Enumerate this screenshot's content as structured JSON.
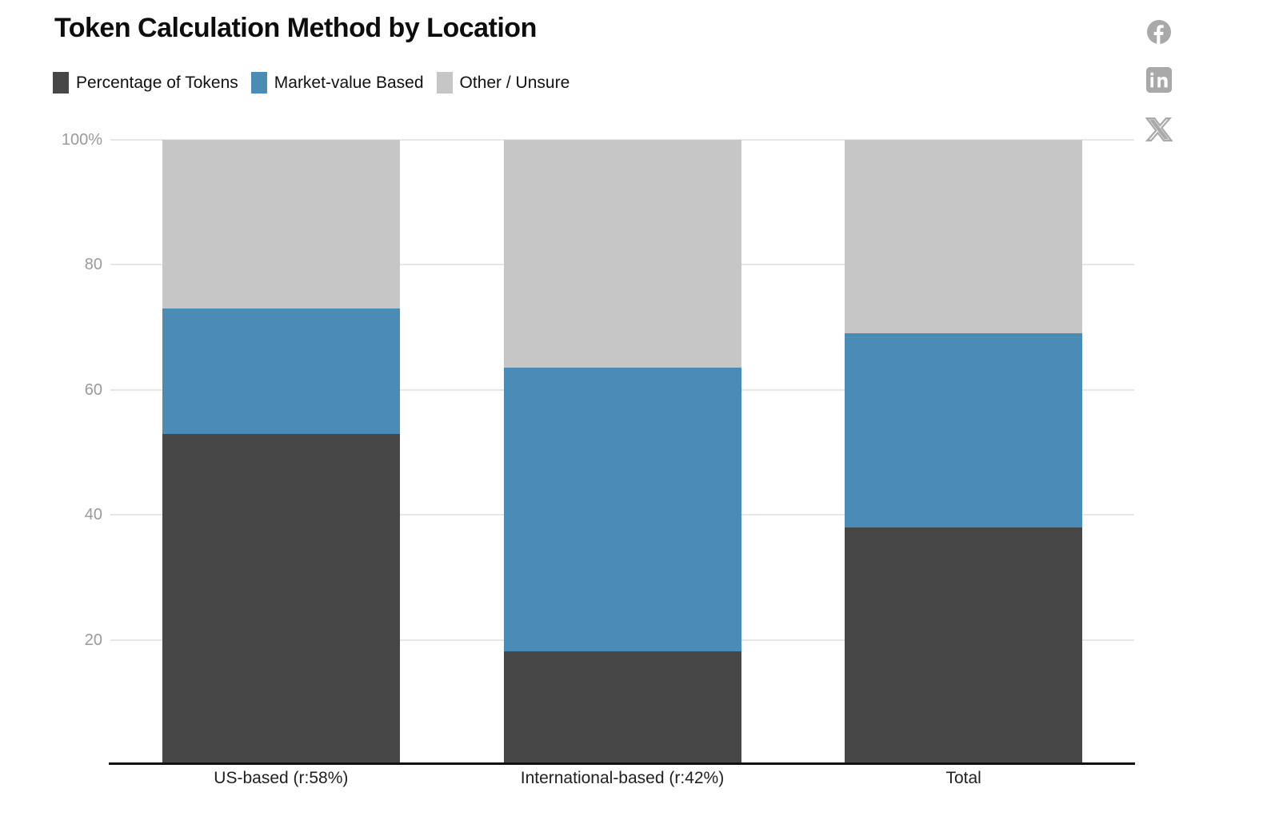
{
  "title": "Token Calculation Method by Location",
  "social": {
    "icon_color": "#a9a9a9",
    "icons": [
      {
        "name": "facebook-icon"
      },
      {
        "name": "linkedin-icon"
      },
      {
        "name": "x-icon"
      }
    ]
  },
  "legend": {
    "items": [
      {
        "label": "Percentage of Tokens",
        "color": "#474747"
      },
      {
        "label": "Market-value Based",
        "color": "#4b8cb7"
      },
      {
        "label": "Other / Unsure",
        "color": "#c6c6c6"
      }
    ]
  },
  "chart_data": {
    "type": "bar",
    "stacked": true,
    "title": "Token Calculation Method by Location",
    "xlabel": "",
    "ylabel": "",
    "categories": [
      "US-based (r:58%)",
      "International-based (r:42%)",
      "Total"
    ],
    "series": [
      {
        "name": "Percentage of Tokens",
        "color": "#474747",
        "values": [
          53,
          18.2,
          38
        ]
      },
      {
        "name": "Market-value Based",
        "color": "#4b8cb7",
        "values": [
          20,
          45.4,
          31
        ]
      },
      {
        "name": "Other / Unsure",
        "color": "#c6c6c6",
        "values": [
          27,
          36.4,
          31
        ]
      }
    ],
    "ylim": [
      0,
      100
    ],
    "yticks": [
      {
        "value": 100,
        "label": "100%"
      },
      {
        "value": 80,
        "label": "80"
      },
      {
        "value": 60,
        "label": "60"
      },
      {
        "value": 40,
        "label": "40"
      },
      {
        "value": 20,
        "label": "20"
      }
    ],
    "grid": true,
    "legend_position": "top-left"
  }
}
